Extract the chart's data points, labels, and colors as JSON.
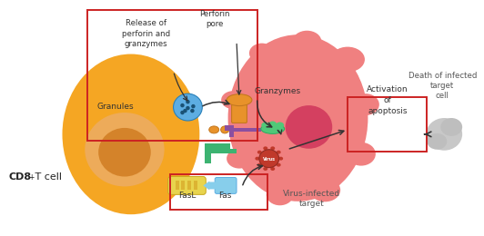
{
  "background_color": "#ffffff",
  "fig_width": 5.32,
  "fig_height": 2.6,
  "cd8_label": "CD8",
  "cd8_sup": "+ T cell",
  "granules_label": "Granules",
  "release_label": "Release of\nperforin and\ngranzymes",
  "perforin_pore_label": "Perforin\npore",
  "granzymes_label": "Granzymes",
  "activation_label": "Activation\nof\napoptosis",
  "death_label": "Death of infected\ntarget\ncell",
  "virus_label": "Virus-infected\ntarget",
  "fasl_label": "FasL",
  "fas_label": "Fas",
  "tcell_body_color": "#F5A623",
  "tcell_nucleus_color": "#E8922A",
  "target_cell_color": "#F08080",
  "target_nucleus_color": "#C41E3A",
  "dead_cell_color": "#C8C8C8",
  "box1_color": "#CC2222",
  "box2_color": "#CC2222",
  "activation_box_color": "#CC2222",
  "arrow_color": "#333333",
  "granule_fill": "#5DADE2",
  "granule_dot": "#1A5276",
  "perforin_color": "#E8922A",
  "green_color": "#3CB371",
  "purple_color": "#8B4FA0",
  "orange_receptor": "#E8922A",
  "fasl_yellow": "#E8D44D",
  "fas_blue": "#87CEEB",
  "enzyme_green": "#50C878",
  "virus_red": "#C0392B",
  "virus_text": "#ffffff"
}
